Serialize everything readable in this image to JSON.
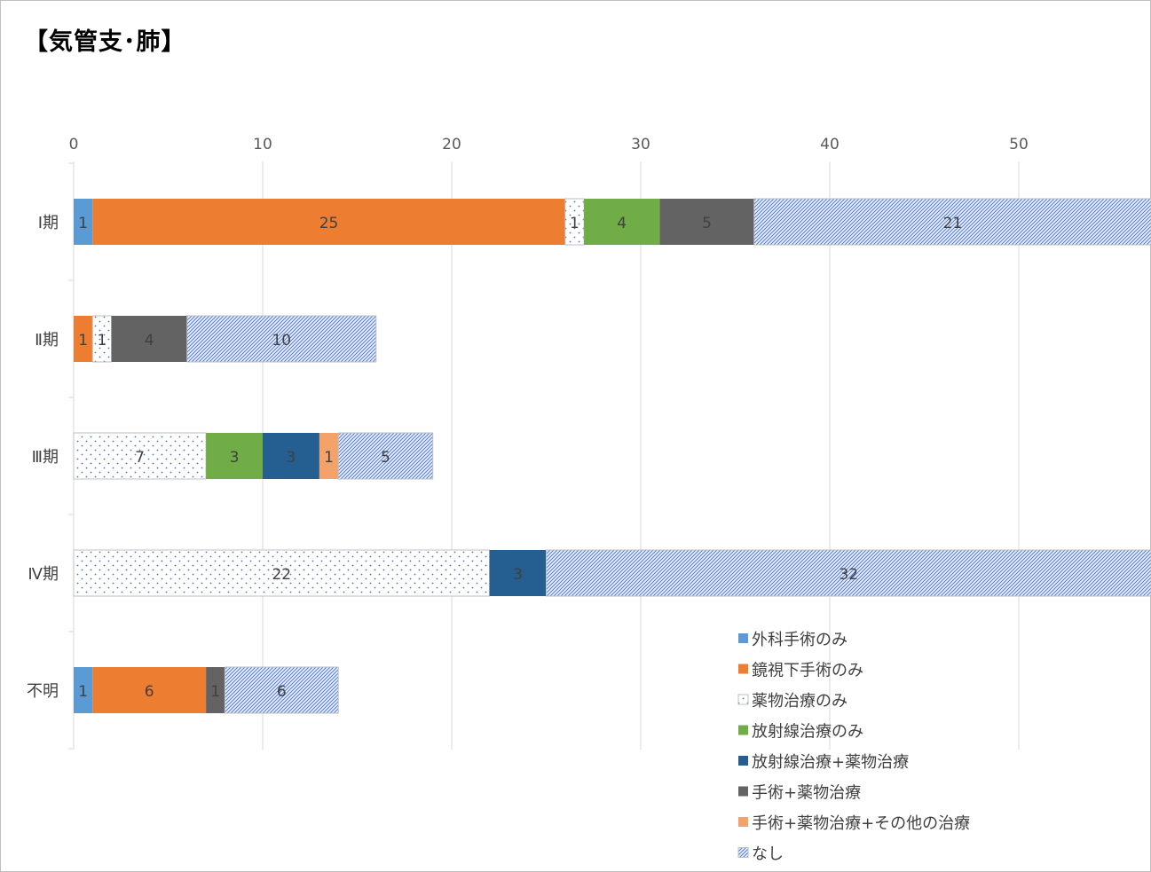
{
  "chart_title": "【気管支･肺】",
  "chart_data": {
    "type": "bar",
    "orientation": "horizontal",
    "stacked": true,
    "title": "【気管支･肺】",
    "categories": [
      "Ⅰ期",
      "Ⅱ期",
      "Ⅲ期",
      "Ⅳ期",
      "不明"
    ],
    "xlim": [
      0,
      55
    ],
    "x_ticks": [
      0,
      10,
      20,
      30,
      40,
      50
    ],
    "x_axis_position": "top",
    "grid": true,
    "legend_position": "bottom-right",
    "series": [
      {
        "name": "外科手術のみ",
        "color": "#5b9bd5",
        "pattern": "solid",
        "values": [
          1,
          0,
          0,
          0,
          1
        ]
      },
      {
        "name": "鏡視下手術のみ",
        "color": "#ed7d31",
        "pattern": "solid",
        "values": [
          25,
          1,
          0,
          0,
          6
        ]
      },
      {
        "name": "薬物治療のみ",
        "color": "#4472c4",
        "pattern": "dots",
        "values": [
          1,
          1,
          7,
          22,
          0
        ]
      },
      {
        "name": "放射線治療のみ",
        "color": "#70ad47",
        "pattern": "solid",
        "values": [
          4,
          0,
          3,
          0,
          0
        ]
      },
      {
        "name": "放射線治療+薬物治療",
        "color": "#255e91",
        "pattern": "solid",
        "values": [
          0,
          0,
          3,
          3,
          0
        ]
      },
      {
        "name": "手術+薬物治療",
        "color": "#636363",
        "pattern": "solid",
        "values": [
          5,
          4,
          0,
          0,
          1
        ]
      },
      {
        "name": "手術+薬物治療+その他の治療",
        "color": "#f4a16a",
        "pattern": "solid",
        "values": [
          0,
          0,
          1,
          0,
          0
        ]
      },
      {
        "name": "なし",
        "color": "#4472c4",
        "pattern": "hatch",
        "values": [
          21,
          10,
          5,
          32,
          6
        ]
      }
    ]
  }
}
